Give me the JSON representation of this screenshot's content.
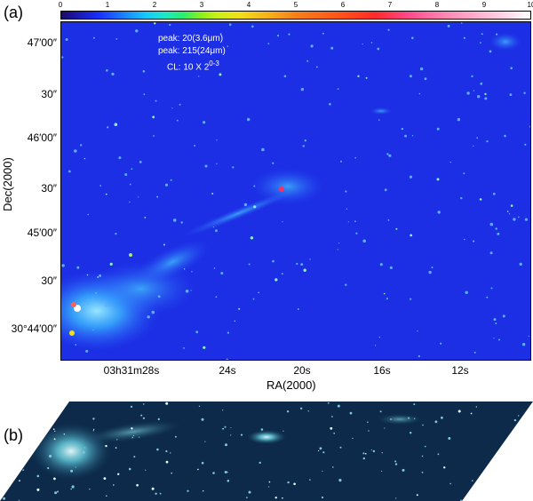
{
  "panels": {
    "a": {
      "label": "(a)",
      "colorbar_ticks": [
        "0",
        "1",
        "2",
        "3",
        "4",
        "5",
        "6",
        "7",
        "8",
        "9",
        "10"
      ],
      "annotations": {
        "line1": "peak: 20(3.6μm)",
        "line2": "peak: 215(24μm)",
        "line3": "CL: 10  X 2",
        "line3_sup": "0-3"
      },
      "y_ticks": [
        "47′00″",
        "30″",
        "46′00″",
        "30″",
        "45′00″",
        "30″",
        "30°44′00″"
      ],
      "x_ticks": [
        "03h31m28s",
        "24s",
        "20s",
        "16s",
        "12s"
      ],
      "x_label": "RA(2000)",
      "y_label": "Dec(2000)"
    },
    "b": {
      "label": "(b)"
    }
  },
  "colors": {
    "map_background": "#1c2fe4",
    "nebula": "#37c4ff",
    "peak": "#ff3060"
  }
}
